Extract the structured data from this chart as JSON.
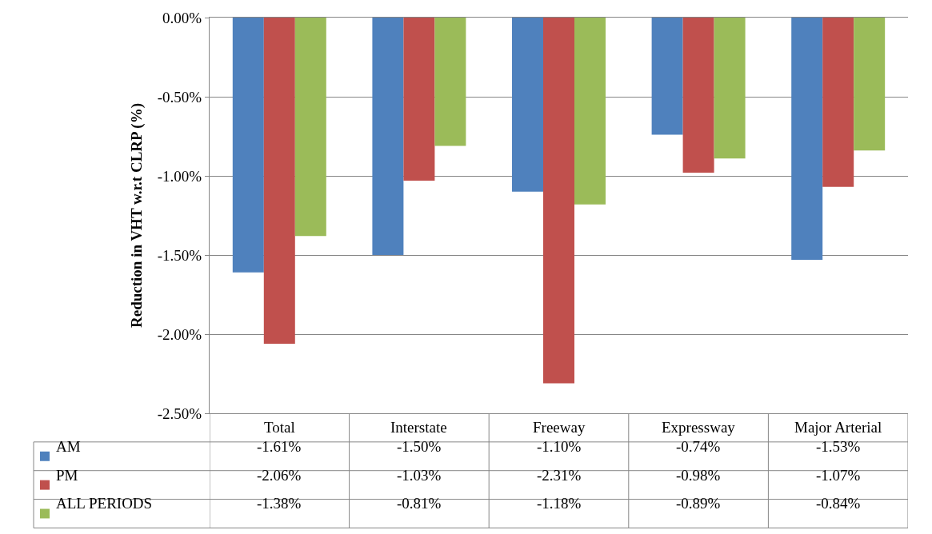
{
  "chart_data": {
    "type": "bar",
    "ylabel": "Reduction in VHT w.r.t CLRP (%)",
    "categories": [
      "Total",
      "Interstate",
      "Freeway",
      "Expressway",
      "Major Arterial"
    ],
    "series": [
      {
        "name": "AM",
        "color": "#4f81bd",
        "values": [
          -1.61,
          -1.5,
          -1.1,
          -0.74,
          -1.53
        ],
        "value_labels": [
          "-1.61%",
          "-1.50%",
          "-1.10%",
          "-0.74%",
          "-1.53%"
        ]
      },
      {
        "name": "PM",
        "color": "#c0504d",
        "values": [
          -2.06,
          -1.03,
          -2.31,
          -0.98,
          -1.07
        ],
        "value_labels": [
          "-2.06%",
          "-1.03%",
          "-2.31%",
          "-0.98%",
          "-1.07%"
        ]
      },
      {
        "name": "ALL PERIODS",
        "color": "#9bbb59",
        "values": [
          -1.38,
          -0.81,
          -1.18,
          -0.89,
          -0.84
        ],
        "value_labels": [
          "-1.38%",
          "-0.81%",
          "-1.18%",
          "-0.89%",
          "-0.84%"
        ]
      }
    ],
    "ylim": [
      -2.5,
      0
    ],
    "yticks": [
      {
        "value": 0,
        "label": "0.00%"
      },
      {
        "value": -0.5,
        "label": "-0.50%"
      },
      {
        "value": -1.0,
        "label": "-1.00%"
      },
      {
        "value": -1.5,
        "label": "-1.50%"
      },
      {
        "value": -2.0,
        "label": "-2.00%"
      },
      {
        "value": -2.5,
        "label": "-2.50%"
      }
    ],
    "grid": "y",
    "legend": "bottom"
  }
}
